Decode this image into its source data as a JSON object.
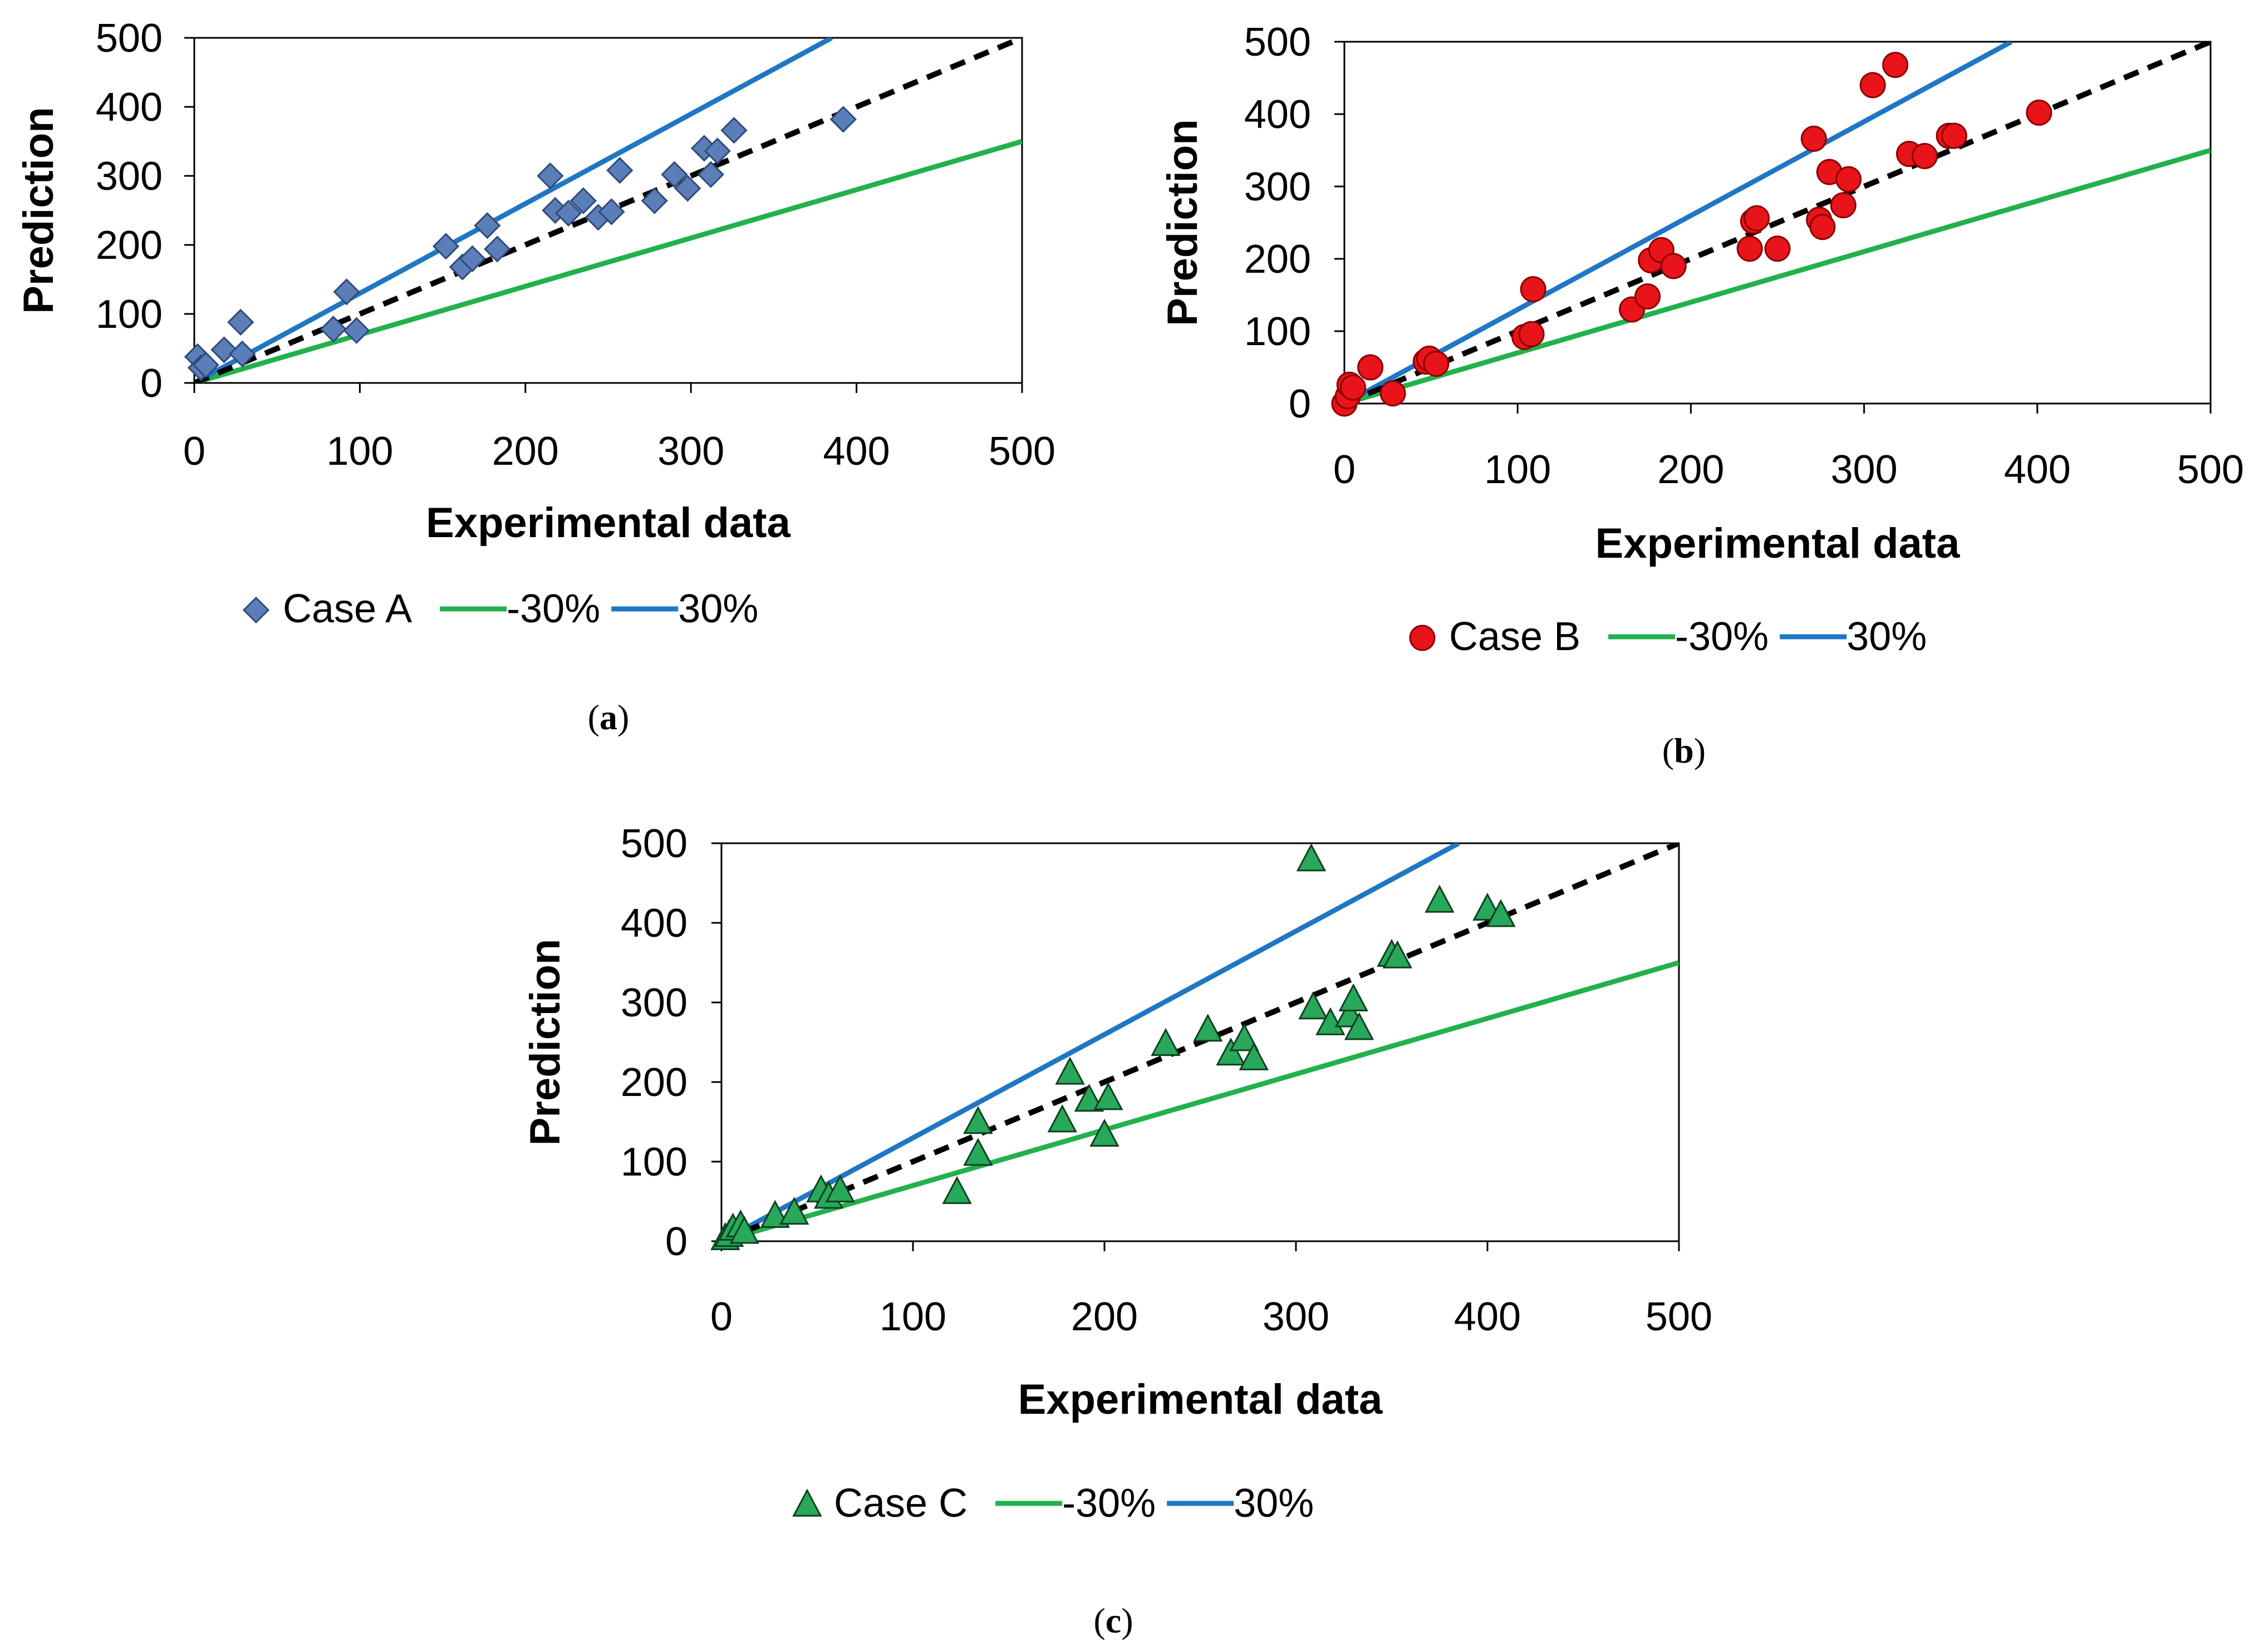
{
  "colors": {
    "minus30": "#22B14C",
    "plus30": "#1F77C4",
    "equality": "#000000",
    "caseA_fill": "#5B7DB8",
    "caseA_edge": "#2F4A7A",
    "caseB_fill": "#E8141A",
    "caseB_edge": "#8B0000",
    "caseC_fill": "#27A85A",
    "caseC_edge": "#0E3F1F"
  },
  "chart_data": [
    {
      "type": "scatter",
      "panel_label": "a",
      "xlabel": "Experimental data",
      "ylabel": "Prediction",
      "xlim": [
        0,
        500
      ],
      "ylim": [
        0,
        500
      ],
      "xticks": [
        "0",
        "100",
        "200",
        "300",
        "400",
        "500"
      ],
      "yticks": [
        "0",
        "100",
        "200",
        "300",
        "400",
        "500"
      ],
      "legend": {
        "position": "bottom",
        "case": "Case A",
        "minus": "-30%",
        "plus": "30%"
      },
      "series": [
        {
          "name": "Case A",
          "marker": "diamond",
          "points": [
            [
              2,
              38
            ],
            [
              4,
              22
            ],
            [
              7,
              26
            ],
            [
              18,
              48
            ],
            [
              28,
              88
            ],
            [
              29,
              42
            ],
            [
              84,
              78
            ],
            [
              92,
              132
            ],
            [
              98,
              76
            ],
            [
              152,
              198
            ],
            [
              162,
              168
            ],
            [
              168,
              180
            ],
            [
              177,
              228
            ],
            [
              183,
              194
            ],
            [
              215,
              300
            ],
            [
              218,
              250
            ],
            [
              226,
              246
            ],
            [
              235,
              264
            ],
            [
              244,
              240
            ],
            [
              252,
              248
            ],
            [
              257,
              308
            ],
            [
              278,
              264
            ],
            [
              290,
              302
            ],
            [
              298,
              282
            ],
            [
              308,
              340
            ],
            [
              312,
              302
            ],
            [
              316,
              336
            ],
            [
              326,
              366
            ],
            [
              392,
              382
            ]
          ]
        },
        {
          "name": "-30%",
          "line": [
            [
              0,
              0
            ],
            [
              500,
              350
            ]
          ]
        },
        {
          "name": "30%",
          "line": [
            [
              0,
              0
            ],
            [
              385,
              500
            ]
          ]
        },
        {
          "name": "1:1",
          "line": [
            [
              0,
              0
            ],
            [
              500,
              500
            ]
          ],
          "style": "dashed"
        }
      ]
    },
    {
      "type": "scatter",
      "panel_label": "b",
      "xlabel": "Experimental data",
      "ylabel": "Prediction",
      "xlim": [
        0,
        500
      ],
      "ylim": [
        0,
        500
      ],
      "xticks": [
        "0",
        "100",
        "200",
        "300",
        "400",
        "500"
      ],
      "yticks": [
        "0",
        "100",
        "200",
        "300",
        "400",
        "500"
      ],
      "legend": {
        "position": "bottom",
        "case": "Case B",
        "minus": "-30%",
        "plus": "30%"
      },
      "series": [
        {
          "name": "Case B",
          "marker": "circle",
          "points": [
            [
              0,
              0
            ],
            [
              2,
              10
            ],
            [
              3,
              26
            ],
            [
              5,
              22
            ],
            [
              15,
              50
            ],
            [
              28,
              14
            ],
            [
              47,
              58
            ],
            [
              49,
              62
            ],
            [
              53,
              55
            ],
            [
              104,
              92
            ],
            [
              108,
              96
            ],
            [
              109,
              158
            ],
            [
              166,
              130
            ],
            [
              175,
              148
            ],
            [
              177,
              198
            ],
            [
              183,
              212
            ],
            [
              190,
              190
            ],
            [
              234,
              214
            ],
            [
              236,
              252
            ],
            [
              238,
              256
            ],
            [
              250,
              214
            ],
            [
              271,
              366
            ],
            [
              274,
              254
            ],
            [
              276,
              244
            ],
            [
              280,
              320
            ],
            [
              288,
              274
            ],
            [
              291,
              310
            ],
            [
              305,
              440
            ],
            [
              318,
              468
            ],
            [
              326,
              345
            ],
            [
              335,
              342
            ],
            [
              349,
              370
            ],
            [
              352,
              370
            ],
            [
              401,
              402
            ]
          ]
        },
        {
          "name": "-30%",
          "line": [
            [
              0,
              0
            ],
            [
              500,
              350
            ]
          ]
        },
        {
          "name": "30%",
          "line": [
            [
              0,
              0
            ],
            [
              385,
              500
            ]
          ]
        },
        {
          "name": "1:1",
          "line": [
            [
              0,
              0
            ],
            [
              500,
              500
            ]
          ],
          "style": "dashed"
        }
      ]
    },
    {
      "type": "scatter",
      "panel_label": "c",
      "xlabel": "Experimental data",
      "ylabel": "Prediction",
      "xlim": [
        0,
        500
      ],
      "ylim": [
        0,
        500
      ],
      "xticks": [
        "0",
        "100",
        "200",
        "300",
        "400",
        "500"
      ],
      "yticks": [
        "0",
        "100",
        "200",
        "300",
        "400",
        "500"
      ],
      "legend": {
        "position": "bottom",
        "case": "Case C",
        "minus": "-30%",
        "plus": "30%"
      },
      "series": [
        {
          "name": "Case C",
          "marker": "triangle",
          "points": [
            [
              2,
              4
            ],
            [
              4,
              8
            ],
            [
              6,
              16
            ],
            [
              10,
              20
            ],
            [
              12,
              12
            ],
            [
              28,
              32
            ],
            [
              38,
              36
            ],
            [
              52,
              64
            ],
            [
              56,
              56
            ],
            [
              62,
              64
            ],
            [
              123,
              62
            ],
            [
              134,
              110
            ],
            [
              134,
              150
            ],
            [
              178,
              152
            ],
            [
              182,
              212
            ],
            [
              192,
              178
            ],
            [
              200,
              134
            ],
            [
              202,
              180
            ],
            [
              232,
              248
            ],
            [
              254,
              266
            ],
            [
              266,
              236
            ],
            [
              273,
              254
            ],
            [
              278,
              230
            ],
            [
              308,
              480
            ],
            [
              309,
              294
            ],
            [
              318,
              274
            ],
            [
              328,
              284
            ],
            [
              330,
              304
            ],
            [
              333,
              268
            ],
            [
              350,
              360
            ],
            [
              353,
              358
            ],
            [
              375,
              428
            ],
            [
              400,
              418
            ],
            [
              407,
              410
            ]
          ]
        },
        {
          "name": "-30%",
          "line": [
            [
              0,
              0
            ],
            [
              500,
              350
            ]
          ]
        },
        {
          "name": "30%",
          "line": [
            [
              0,
              0
            ],
            [
              385,
              500
            ]
          ]
        },
        {
          "name": "1:1",
          "line": [
            [
              0,
              0
            ],
            [
              500,
              500
            ]
          ],
          "style": "dashed"
        }
      ]
    }
  ]
}
